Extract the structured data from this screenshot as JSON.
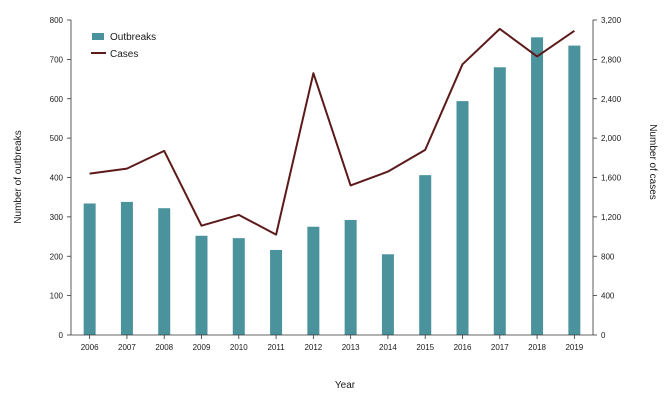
{
  "chart_data": {
    "type": "bar",
    "xlabel": "Year",
    "ylabel_left": "Number of outbreaks",
    "ylabel_right": "Number of cases",
    "categories": [
      "2006",
      "2007",
      "2008",
      "2009",
      "2010",
      "2011",
      "2012",
      "2013",
      "2014",
      "2015",
      "2016",
      "2017",
      "2018",
      "2019"
    ],
    "series": [
      {
        "name": "Outbreaks",
        "type": "bar",
        "axis": "left",
        "color": "#4a939c",
        "values": [
          334,
          338,
          322,
          252,
          246,
          216,
          275,
          292,
          205,
          406,
          594,
          680,
          756,
          735
        ]
      },
      {
        "name": "Cases",
        "type": "line",
        "axis": "right",
        "color": "#5c1a1a",
        "values": [
          1640,
          1690,
          1870,
          1110,
          1220,
          1020,
          2660,
          1520,
          1660,
          1880,
          2750,
          3110,
          2830,
          3090
        ]
      }
    ],
    "ylim_left": [
      0,
      800
    ],
    "ylim_right": [
      0,
      3200
    ],
    "yticks_left": [
      "0",
      "100",
      "200",
      "300",
      "400",
      "500",
      "600",
      "700",
      "800"
    ],
    "yticks_right": [
      "0",
      "400",
      "800",
      "1,200",
      "1,600",
      "2,000",
      "2,400",
      "2,800",
      "3,200"
    ],
    "legend_position": "top-left",
    "grid": false
  }
}
